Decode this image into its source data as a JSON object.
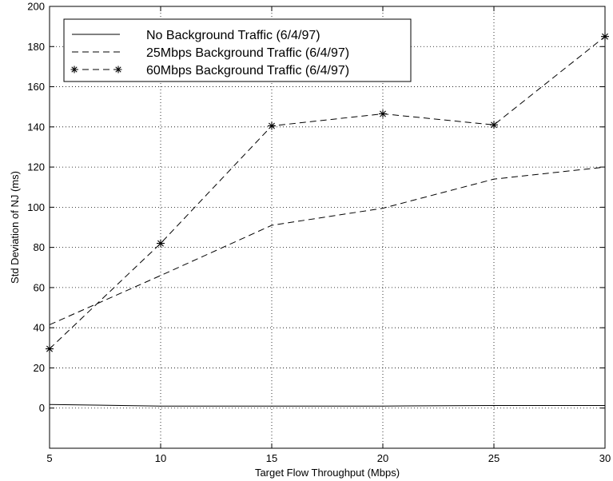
{
  "chart_data": {
    "type": "line",
    "title": "",
    "xlabel": "Target Flow Throughput (Mbps)",
    "ylabel": "Std Deviation of NJ (ms)",
    "xlim": [
      5,
      30
    ],
    "ylim": [
      -20,
      200
    ],
    "xticks": [
      5,
      10,
      15,
      20,
      25,
      30
    ],
    "yticks": [
      0,
      20,
      40,
      60,
      80,
      100,
      120,
      140,
      160,
      180,
      200
    ],
    "grid": true,
    "legend_position": "top-left",
    "x": [
      5,
      10,
      15,
      20,
      25,
      30
    ],
    "series": [
      {
        "name": "No Background Traffic (6/4/97)",
        "style": "solid",
        "marker": "none",
        "values": [
          1.8,
          1.0,
          1.0,
          1.0,
          1.3,
          1.3
        ]
      },
      {
        "name": "25Mbps Background Traffic (6/4/97)",
        "style": "dashed",
        "marker": "none",
        "values": [
          41.5,
          66,
          91,
          99.5,
          114,
          120
        ]
      },
      {
        "name": "60Mbps Background Traffic (6/4/97)",
        "style": "dashed",
        "marker": "star",
        "values": [
          29.5,
          82,
          140.5,
          146.5,
          141,
          185
        ]
      }
    ],
    "colors": {
      "line": "#000000",
      "grid": "#000000",
      "background": "#ffffff"
    }
  }
}
